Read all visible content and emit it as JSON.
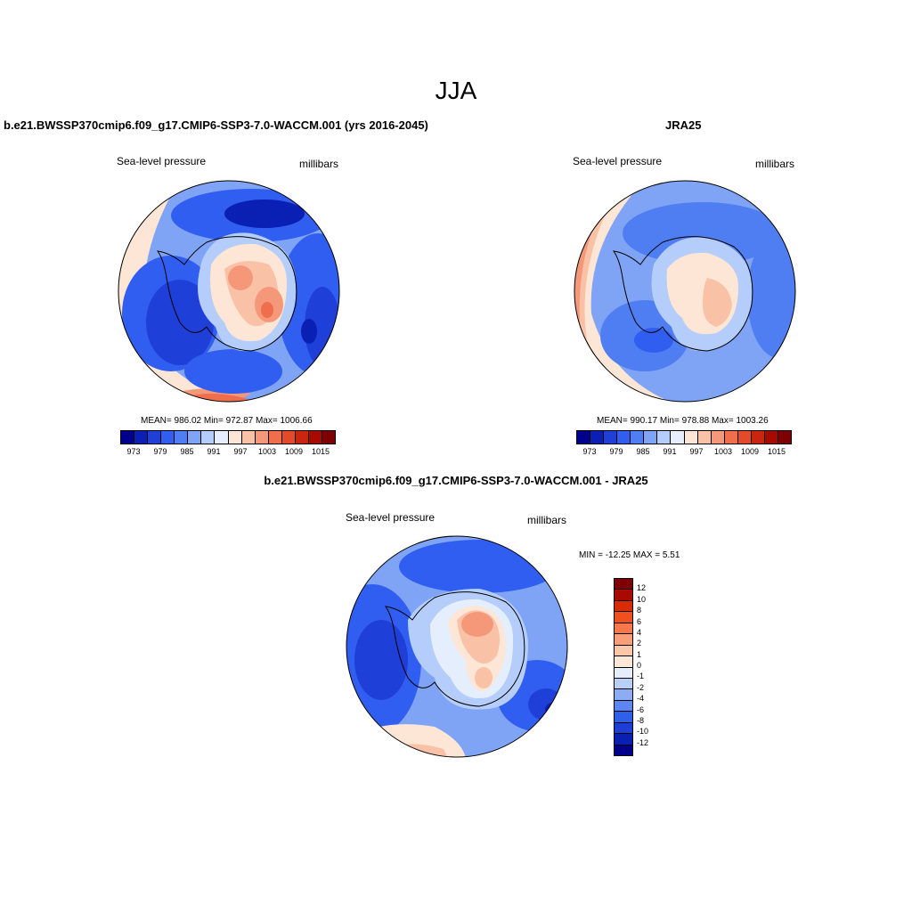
{
  "main_title": "JJA",
  "panels": [
    {
      "title": "b.e21.BWSSP370cmip6.f09_g17.CMIP6-SSP3-7.0-WACCM.001 (yrs 2016-2045)",
      "left_label": "Sea-level pressure",
      "right_label": "millibars",
      "stats": "MEAN= 986.02  Min= 972.87  Max= 1006.66"
    },
    {
      "title": "JRA25",
      "left_label": "Sea-level pressure",
      "right_label": "millibars",
      "stats": "MEAN= 990.17  Min= 978.88  Max= 1003.26"
    },
    {
      "title": "b.e21.BWSSP370cmip6.f09_g17.CMIP6-SSP3-7.0-WACCM.001 - JRA25",
      "left_label": "Sea-level pressure",
      "right_label": "millibars",
      "stats": "MIN = -12.25 MAX =   5.51"
    }
  ],
  "colorbar_abs": {
    "colors": [
      "#00008b",
      "#0a1fb4",
      "#1f3fd9",
      "#2f5ef0",
      "#4f7ef2",
      "#7fa4f5",
      "#b5cdfa",
      "#e4eefc",
      "#fde6d5",
      "#f9c2a6",
      "#f5987a",
      "#ef6e4c",
      "#e4492a",
      "#c9250f",
      "#a80a00",
      "#7f0000"
    ],
    "ticks": [
      "973",
      "979",
      "985",
      "991",
      "997",
      "1003",
      "1009",
      "1015"
    ]
  },
  "colorbar_diff": {
    "colors": [
      "#7f0000",
      "#a80a00",
      "#d82b08",
      "#f0501e",
      "#f5774c",
      "#f89e79",
      "#fbc7a8",
      "#fde8d8",
      "#e6eefb",
      "#b9cff8",
      "#8cacf4",
      "#5d86f0",
      "#2f60ec",
      "#1e3fd6",
      "#0a20b0",
      "#00008b"
    ],
    "ticks": [
      "12",
      "10",
      "8",
      "6",
      "4",
      "2",
      "1",
      "0",
      "-1",
      "-2",
      "-4",
      "-6",
      "-8",
      "-10",
      "-12"
    ]
  },
  "map_colors": {
    "very_dark": "#0a1fb4",
    "dark": "#1f3fd9",
    "mid": "#2f5ef0",
    "medium": "#4f7ef2",
    "light": "#7fa4f5",
    "pale": "#b5cdfa",
    "very_pale": "#e4eefc",
    "cream": "#fde6d5",
    "peach": "#f9c2a6",
    "salmon": "#f5987a",
    "orange": "#ef6e4c",
    "red": "#e4492a"
  }
}
